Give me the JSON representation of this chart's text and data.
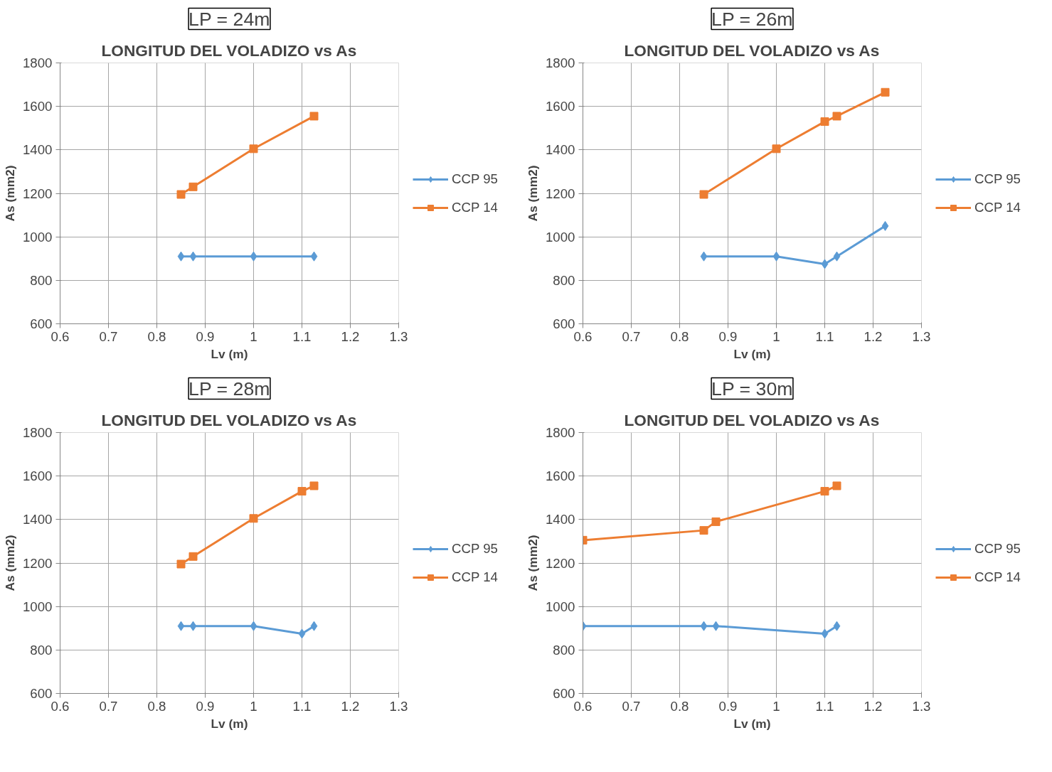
{
  "chart_data": [
    {
      "type": "line",
      "subtitle": "LP = 24m",
      "title": "LONGITUD DEL VOLADIZO vs As",
      "xlabel": "Lv (m)",
      "ylabel": "As (mm2)",
      "xlim": [
        0.6,
        1.3
      ],
      "xticks": [
        0.6,
        0.7,
        0.8,
        0.9,
        1,
        1.1,
        1.2,
        1.3
      ],
      "ylim": [
        600,
        1800
      ],
      "yticks": [
        600,
        800,
        1000,
        1200,
        1400,
        1600,
        1800
      ],
      "grid": true,
      "legend": "right",
      "line_style": "solid",
      "series": [
        {
          "name": "CCP 95",
          "color": "#5b9bd5",
          "marker": "diamond",
          "x": [
            0.85,
            0.875,
            1.0,
            1.125
          ],
          "values": [
            910,
            910,
            910,
            910
          ]
        },
        {
          "name": "CCP 14",
          "color": "#ed7d31",
          "marker": "square",
          "x": [
            0.85,
            0.875,
            1.0,
            1.125
          ],
          "values": [
            1195,
            1230,
            1405,
            1555
          ]
        }
      ]
    },
    {
      "type": "line",
      "subtitle": "LP = 26m",
      "title": "LONGITUD DEL VOLADIZO vs As",
      "xlabel": "Lv (m)",
      "ylabel": "As (mm2)",
      "xlim": [
        0.6,
        1.3
      ],
      "xticks": [
        0.6,
        0.7,
        0.8,
        0.9,
        1,
        1.1,
        1.2,
        1.3
      ],
      "ylim": [
        600,
        1800
      ],
      "yticks": [
        600,
        800,
        1000,
        1200,
        1400,
        1600,
        1800
      ],
      "grid": true,
      "legend": "right",
      "line_style": "solid",
      "series": [
        {
          "name": "CCP 95",
          "color": "#5b9bd5",
          "marker": "diamond",
          "x": [
            0.85,
            1.0,
            1.1,
            1.125,
            1.225
          ],
          "values": [
            910,
            910,
            875,
            910,
            1050
          ]
        },
        {
          "name": "CCP 14",
          "color": "#ed7d31",
          "marker": "square",
          "x": [
            0.85,
            1.0,
            1.1,
            1.125,
            1.225
          ],
          "values": [
            1195,
            1405,
            1530,
            1555,
            1665
          ]
        }
      ]
    },
    {
      "type": "line",
      "subtitle": "LP = 28m",
      "title": "LONGITUD DEL VOLADIZO vs As",
      "xlabel": "Lv (m)",
      "ylabel": "As (mm2)",
      "xlim": [
        0.6,
        1.3
      ],
      "xticks": [
        0.6,
        0.7,
        0.8,
        0.9,
        1,
        1.1,
        1.2,
        1.3
      ],
      "ylim": [
        600,
        1800
      ],
      "yticks": [
        600,
        800,
        1000,
        1200,
        1400,
        1600,
        1800
      ],
      "grid": true,
      "legend": "right",
      "line_style": "solid",
      "series": [
        {
          "name": "CCP 95",
          "color": "#5b9bd5",
          "marker": "diamond",
          "x": [
            0.85,
            0.875,
            1.0,
            1.1,
            1.125
          ],
          "values": [
            910,
            910,
            910,
            875,
            910
          ]
        },
        {
          "name": "CCP 14",
          "color": "#ed7d31",
          "marker": "square",
          "x": [
            0.85,
            0.875,
            1.0,
            1.1,
            1.125
          ],
          "values": [
            1195,
            1230,
            1405,
            1530,
            1555
          ]
        }
      ]
    },
    {
      "type": "line",
      "subtitle": "LP = 30m",
      "title": "LONGITUD DEL VOLADIZO vs As",
      "xlabel": "Lv (m)",
      "ylabel": "As (mm2)",
      "xlim": [
        0.6,
        1.3
      ],
      "xticks": [
        0.6,
        0.7,
        0.8,
        0.9,
        1,
        1.1,
        1.2,
        1.3
      ],
      "ylim": [
        600,
        1800
      ],
      "yticks": [
        600,
        800,
        1000,
        1200,
        1400,
        1600,
        1800
      ],
      "grid": true,
      "legend": "right",
      "line_style": "solid",
      "series": [
        {
          "name": "CCP 95",
          "color": "#5b9bd5",
          "marker": "diamond",
          "x": [
            0.6,
            0.85,
            0.875,
            1.1,
            1.125
          ],
          "values": [
            910,
            910,
            910,
            875,
            910
          ]
        },
        {
          "name": "CCP 14",
          "color": "#ed7d31",
          "marker": "square",
          "x": [
            0.6,
            0.85,
            0.875,
            1.1,
            1.125
          ],
          "values": [
            1305,
            1350,
            1390,
            1530,
            1555
          ]
        }
      ]
    }
  ]
}
